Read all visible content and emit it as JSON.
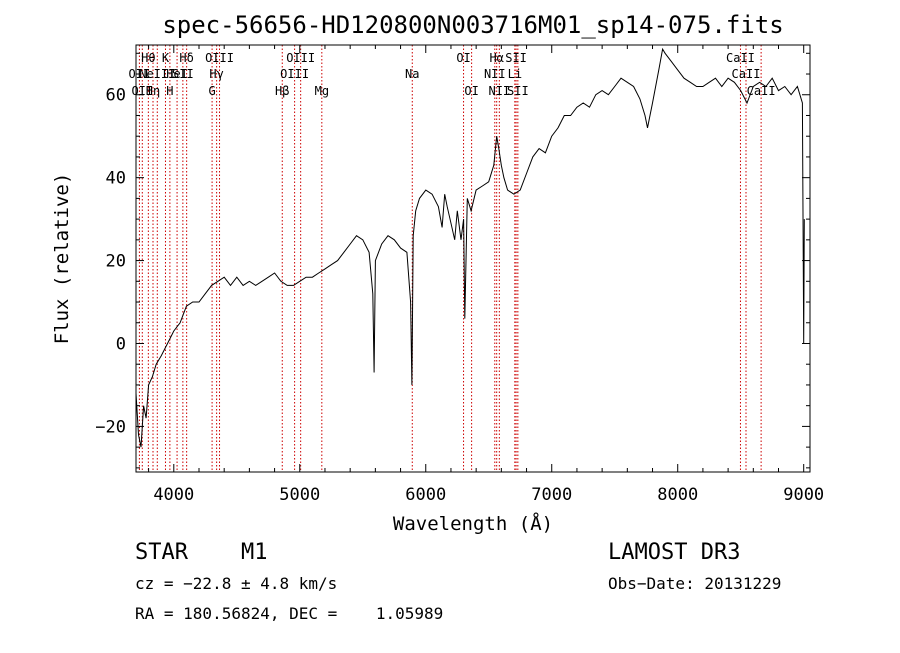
{
  "chart_data": {
    "type": "line",
    "title": "spec-56656-HD120800N003716M01_sp14-075.fits",
    "xlabel": "Wavelength (Å)",
    "ylabel": "Flux (relative)",
    "xlim": [
      3700,
      9050
    ],
    "ylim": [
      -31,
      72
    ],
    "xticks": [
      4000,
      5000,
      6000,
      7000,
      8000,
      9000
    ],
    "yticks": [
      -20,
      0,
      20,
      40,
      60
    ],
    "grid": false,
    "series": [
      {
        "name": "spectrum",
        "x": [
          3700,
          3720,
          3740,
          3760,
          3780,
          3800,
          3830,
          3860,
          3900,
          3950,
          4000,
          4050,
          4100,
          4150,
          4200,
          4250,
          4300,
          4350,
          4400,
          4450,
          4500,
          4550,
          4600,
          4650,
          4700,
          4750,
          4800,
          4850,
          4900,
          4950,
          5000,
          5050,
          5100,
          5150,
          5200,
          5250,
          5300,
          5350,
          5400,
          5450,
          5500,
          5550,
          5580,
          5590,
          5600,
          5650,
          5700,
          5750,
          5800,
          5850,
          5880,
          5890,
          5900,
          5920,
          5950,
          6000,
          6050,
          6100,
          6130,
          6150,
          6170,
          6200,
          6230,
          6250,
          6280,
          6300,
          6310,
          6330,
          6360,
          6400,
          6450,
          6500,
          6540,
          6563,
          6580,
          6600,
          6620,
          6650,
          6700,
          6750,
          6800,
          6850,
          6900,
          6950,
          7000,
          7050,
          7100,
          7150,
          7200,
          7250,
          7300,
          7350,
          7400,
          7450,
          7500,
          7550,
          7600,
          7650,
          7700,
          7740,
          7760,
          7800,
          7850,
          7880,
          7900,
          7950,
          8000,
          8050,
          8100,
          8150,
          8200,
          8250,
          8300,
          8350,
          8400,
          8450,
          8500,
          8550,
          8600,
          8650,
          8700,
          8750,
          8800,
          8850,
          8900,
          8950,
          8990,
          9000,
          9005
        ],
        "y": [
          -12,
          -22,
          -25,
          -15,
          -18,
          -10,
          -8,
          -5,
          -3,
          0,
          3,
          5,
          9,
          10,
          10,
          12,
          14,
          15,
          16,
          14,
          16,
          14,
          15,
          14,
          15,
          16,
          17,
          15,
          14,
          14,
          15,
          16,
          16,
          17,
          18,
          19,
          20,
          22,
          24,
          26,
          25,
          22,
          12,
          -7,
          20,
          24,
          26,
          25,
          23,
          22,
          10,
          -10,
          26,
          32,
          35,
          37,
          36,
          33,
          28,
          36,
          33,
          29,
          25,
          32,
          25,
          30,
          6,
          35,
          32,
          37,
          38,
          39,
          43,
          50,
          47,
          43,
          40,
          37,
          36,
          37,
          41,
          45,
          47,
          46,
          50,
          52,
          55,
          55,
          57,
          58,
          57,
          60,
          61,
          60,
          62,
          64,
          63,
          62,
          59,
          55,
          52,
          58,
          66,
          71,
          70,
          68,
          66,
          64,
          63,
          62,
          62,
          63,
          64,
          62,
          64,
          63,
          61,
          58,
          62,
          63,
          62,
          64,
          61,
          62,
          60,
          62,
          58,
          0,
          30
        ]
      }
    ],
    "emission_lines": [
      {
        "wavelength": 3727,
        "label": "OII",
        "row": 2
      },
      {
        "wavelength": 3750,
        "label": "OII",
        "row": 3
      },
      {
        "wavelength": 3798,
        "label": "Hθ",
        "row": 1
      },
      {
        "wavelength": 3835,
        "label": "Hη",
        "row": 3
      },
      {
        "wavelength": 3869,
        "label": "NeIII",
        "row": 2
      },
      {
        "wavelength": 3934,
        "label": "K",
        "row": 1
      },
      {
        "wavelength": 3969,
        "label": "H",
        "row": 3
      },
      {
        "wavelength": 4026,
        "label": "HeI",
        "row": 2
      },
      {
        "wavelength": 4072,
        "label": "SII",
        "row": 2
      },
      {
        "wavelength": 4102,
        "label": "Hδ",
        "row": 1
      },
      {
        "wavelength": 4304,
        "label": "G",
        "row": 3
      },
      {
        "wavelength": 4340,
        "label": "Hγ",
        "row": 2
      },
      {
        "wavelength": 4363,
        "label": "OIII",
        "row": 1
      },
      {
        "wavelength": 4861,
        "label": "Hβ",
        "row": 3
      },
      {
        "wavelength": 4959,
        "label": "OIII",
        "row": 2
      },
      {
        "wavelength": 5007,
        "label": "OIII",
        "row": 1
      },
      {
        "wavelength": 5175,
        "label": "Mg",
        "row": 3
      },
      {
        "wavelength": 5893,
        "label": "Na",
        "row": 2
      },
      {
        "wavelength": 6300,
        "label": "OI",
        "row": 1
      },
      {
        "wavelength": 6364,
        "label": "OI",
        "row": 3
      },
      {
        "wavelength": 6548,
        "label": "NII",
        "row": 2
      },
      {
        "wavelength": 6563,
        "label": "Hα",
        "row": 1
      },
      {
        "wavelength": 6584,
        "label": "NII",
        "row": 3
      },
      {
        "wavelength": 6707,
        "label": "Li",
        "row": 2
      },
      {
        "wavelength": 6717,
        "label": "SII",
        "row": 1
      },
      {
        "wavelength": 6731,
        "label": "SII",
        "row": 3
      },
      {
        "wavelength": 8498,
        "label": "CaII",
        "row": 1
      },
      {
        "wavelength": 8542,
        "label": "CaII",
        "row": 2
      },
      {
        "wavelength": 8662,
        "label": "CaII",
        "row": 3
      }
    ],
    "line_color": "#cc0000"
  },
  "info": {
    "object_class": "STAR",
    "subclass": "M1",
    "survey": "LAMOST DR3",
    "cz": "cz = −22.8 ± 4.8 km/s",
    "obs_date": "Obs−Date: 20131229",
    "coords": "RA = 180.56824, DEC =    1.05989"
  }
}
